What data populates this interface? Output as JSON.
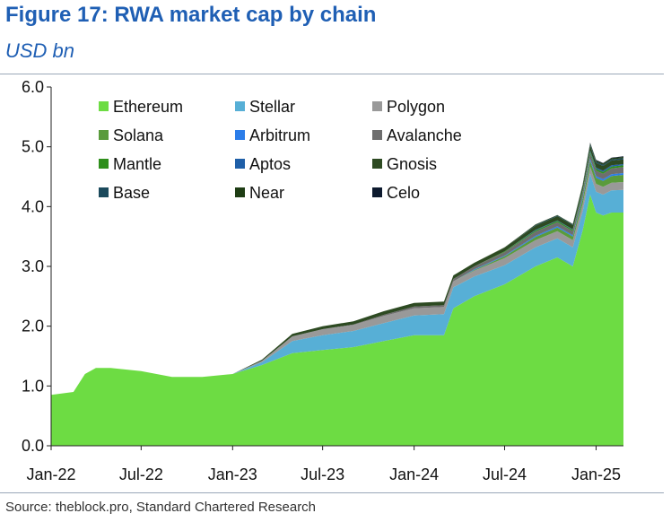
{
  "title": "Figure 17: RWA market cap by chain",
  "subtitle": "USD bn",
  "source": "Source: theblock.pro, Standard Chartered Research",
  "chart_data": {
    "type": "area",
    "stacked": true,
    "title": "Figure 17: RWA market cap by chain",
    "ylabel": "USD bn",
    "ylim": [
      0,
      6
    ],
    "yticks": [
      "0.0",
      "1.0",
      "2.0",
      "3.0",
      "4.0",
      "5.0",
      "6.0"
    ],
    "xticks": [
      "Jan-22",
      "Jul-22",
      "Jan-23",
      "Jul-23",
      "Jan-24",
      "Jul-24",
      "Jan-25"
    ],
    "legend_position": "top",
    "grid": false,
    "x": [
      "2022-01-01",
      "2022-02-15",
      "2022-03-10",
      "2022-04-01",
      "2022-05-01",
      "2022-07-01",
      "2022-09-01",
      "2022-10-01",
      "2022-11-01",
      "2023-01-01",
      "2023-03-01",
      "2023-05-01",
      "2023-07-01",
      "2023-09-01",
      "2023-11-01",
      "2024-01-01",
      "2024-03-01",
      "2024-03-20",
      "2024-05-01",
      "2024-07-01",
      "2024-09-01",
      "2024-10-15",
      "2024-11-15",
      "2024-12-05",
      "2024-12-20",
      "2025-01-01",
      "2025-01-15",
      "2025-02-01",
      "2025-02-25"
    ],
    "series": [
      {
        "name": "Ethereum",
        "color": "#6ddc43",
        "values": [
          0.85,
          0.9,
          1.2,
          1.3,
          1.3,
          1.25,
          1.15,
          1.15,
          1.15,
          1.2,
          1.35,
          1.55,
          1.6,
          1.65,
          1.75,
          1.85,
          1.85,
          2.3,
          2.5,
          2.7,
          3.0,
          3.15,
          3.0,
          3.6,
          4.2,
          3.9,
          3.85,
          3.9,
          3.9
        ]
      },
      {
        "name": "Stellar",
        "color": "#57afd6",
        "values": [
          0,
          0,
          0,
          0,
          0,
          0,
          0,
          0,
          0,
          0,
          0.05,
          0.2,
          0.25,
          0.27,
          0.3,
          0.33,
          0.35,
          0.35,
          0.33,
          0.32,
          0.32,
          0.32,
          0.32,
          0.32,
          0.35,
          0.35,
          0.35,
          0.37,
          0.38
        ]
      },
      {
        "name": "Polygon",
        "color": "#999999",
        "values": [
          0,
          0,
          0,
          0,
          0,
          0,
          0,
          0,
          0,
          0,
          0.02,
          0.08,
          0.1,
          0.1,
          0.12,
          0.12,
          0.12,
          0.1,
          0.1,
          0.12,
          0.12,
          0.12,
          0.12,
          0.12,
          0.12,
          0.13,
          0.13,
          0.13,
          0.13
        ]
      },
      {
        "name": "Solana",
        "color": "#5a9b3c",
        "values": [
          0,
          0,
          0,
          0,
          0,
          0,
          0,
          0,
          0,
          0,
          0,
          0,
          0,
          0,
          0,
          0,
          0,
          0,
          0.01,
          0.03,
          0.05,
          0.06,
          0.06,
          0.08,
          0.1,
          0.1,
          0.1,
          0.11,
          0.12
        ]
      },
      {
        "name": "Arbitrum",
        "color": "#2b7de9",
        "values": [
          0,
          0,
          0,
          0,
          0,
          0,
          0,
          0,
          0,
          0,
          0,
          0,
          0,
          0,
          0,
          0,
          0,
          0,
          0.01,
          0.01,
          0.02,
          0.02,
          0.02,
          0.03,
          0.03,
          0.03,
          0.03,
          0.03,
          0.03
        ]
      },
      {
        "name": "Avalanche",
        "color": "#6e6e6e",
        "values": [
          0,
          0,
          0,
          0,
          0,
          0,
          0,
          0,
          0,
          0,
          0,
          0,
          0,
          0.01,
          0.02,
          0.03,
          0.03,
          0.04,
          0.05,
          0.06,
          0.07,
          0.07,
          0.07,
          0.08,
          0.09,
          0.09,
          0.09,
          0.1,
          0.1
        ]
      },
      {
        "name": "Mantle",
        "color": "#2f8f1c",
        "values": [
          0,
          0,
          0,
          0,
          0,
          0,
          0,
          0,
          0,
          0,
          0,
          0,
          0,
          0,
          0,
          0,
          0,
          0,
          0,
          0.01,
          0.02,
          0.02,
          0.02,
          0.03,
          0.03,
          0.03,
          0.03,
          0.03,
          0.03
        ]
      },
      {
        "name": "Aptos",
        "color": "#1f5fa8",
        "values": [
          0,
          0,
          0,
          0,
          0,
          0,
          0,
          0,
          0,
          0,
          0,
          0,
          0,
          0,
          0,
          0,
          0,
          0,
          0,
          0,
          0.01,
          0.01,
          0.01,
          0.01,
          0.02,
          0.02,
          0.02,
          0.02,
          0.02
        ]
      },
      {
        "name": "Gnosis",
        "color": "#2d4a22",
        "values": [
          0,
          0,
          0,
          0,
          0,
          0,
          0,
          0,
          0,
          0,
          0.02,
          0.04,
          0.05,
          0.05,
          0.06,
          0.06,
          0.06,
          0.06,
          0.06,
          0.06,
          0.07,
          0.07,
          0.07,
          0.07,
          0.08,
          0.08,
          0.08,
          0.08,
          0.08
        ]
      },
      {
        "name": "Base",
        "color": "#1b4a5c",
        "values": [
          0,
          0,
          0,
          0,
          0,
          0,
          0,
          0,
          0,
          0,
          0,
          0,
          0,
          0,
          0,
          0,
          0,
          0,
          0,
          0,
          0.01,
          0.01,
          0.01,
          0.01,
          0.02,
          0.02,
          0.02,
          0.02,
          0.02
        ]
      },
      {
        "name": "Near",
        "color": "#1e3d14",
        "values": [
          0,
          0,
          0,
          0,
          0,
          0,
          0,
          0,
          0,
          0,
          0,
          0,
          0,
          0,
          0,
          0,
          0,
          0,
          0,
          0.01,
          0.01,
          0.01,
          0.01,
          0.02,
          0.02,
          0.02,
          0.02,
          0.02,
          0.02
        ]
      },
      {
        "name": "Celo",
        "color": "#0d1a2e",
        "values": [
          0,
          0,
          0,
          0,
          0,
          0,
          0,
          0,
          0,
          0,
          0,
          0,
          0,
          0,
          0,
          0,
          0,
          0,
          0,
          0,
          0,
          0,
          0,
          0,
          0.01,
          0.01,
          0.01,
          0.01,
          0.01
        ]
      }
    ]
  }
}
